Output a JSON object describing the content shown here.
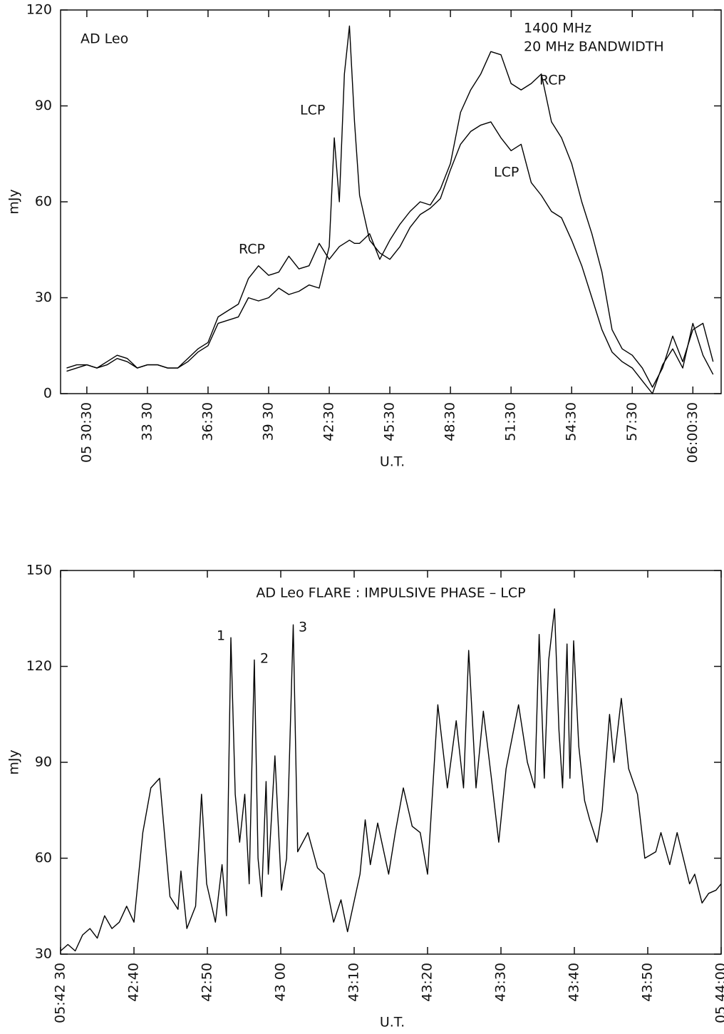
{
  "chart_data": [
    {
      "type": "line",
      "annotations": [
        "AD  Leo",
        "1400 MHz",
        "20 MHz  BANDWIDTH"
      ],
      "xlabel": "U.T.",
      "ylabel": "mJy",
      "x": [
        29.5,
        30,
        30.5,
        31,
        31.5,
        32,
        32.5,
        33,
        33.5,
        34,
        34.5,
        35,
        35.5,
        36,
        36.5,
        37,
        37.5,
        38,
        38.5,
        39,
        39.5,
        40,
        40.5,
        41,
        41.5,
        42,
        42.5,
        42.75,
        43,
        43.25,
        43.5,
        43.75,
        44,
        44.5,
        45,
        45.5,
        46,
        46.5,
        47,
        47.5,
        48,
        48.5,
        49,
        49.5,
        50,
        50.5,
        51,
        51.5,
        52,
        52.5,
        53,
        53.5,
        54,
        54.5,
        55,
        55.5,
        56,
        56.5,
        57,
        57.5,
        58,
        58.5,
        59,
        59.5,
        60,
        60.5,
        61,
        61.5
      ],
      "series": [
        {
          "name": "RCP",
          "color": "#000000",
          "values": [
            8,
            9,
            9,
            8,
            10,
            12,
            11,
            8,
            9,
            9,
            8,
            8,
            11,
            14,
            16,
            24,
            26,
            28,
            36,
            40,
            37,
            38,
            43,
            39,
            40,
            47,
            42,
            44,
            46,
            47,
            48,
            47,
            47,
            50,
            42,
            48,
            53,
            57,
            60,
            59,
            64,
            72,
            88,
            95,
            100,
            107,
            106,
            97,
            95,
            97,
            100,
            85,
            80,
            72,
            60,
            50,
            38,
            20,
            14,
            12,
            8,
            2,
            8,
            18,
            10,
            20,
            22,
            10
          ]
        },
        {
          "name": "LCP",
          "color": "#000000",
          "values": [
            7,
            8,
            9,
            8,
            9,
            11,
            10,
            8,
            9,
            9,
            8,
            8,
            10,
            13,
            15,
            22,
            23,
            24,
            30,
            29,
            30,
            33,
            31,
            32,
            34,
            33,
            46,
            80,
            60,
            100,
            115,
            85,
            62,
            48,
            44,
            42,
            46,
            52,
            56,
            58,
            61,
            70,
            78,
            82,
            84,
            85,
            80,
            76,
            78,
            66,
            62,
            57,
            55,
            48,
            40,
            30,
            20,
            13,
            10,
            8,
            4,
            0,
            9,
            14,
            8,
            22,
            12,
            6
          ]
        }
      ],
      "xlim": [
        29.2,
        61.9
      ],
      "ylim": [
        0,
        120
      ],
      "xticks": [
        {
          "value": 30.5,
          "label": "05 30:30"
        },
        {
          "value": 33.5,
          "label": "33 30"
        },
        {
          "value": 36.5,
          "label": "36:30"
        },
        {
          "value": 39.5,
          "label": "39 30"
        },
        {
          "value": 42.5,
          "label": "42:30"
        },
        {
          "value": 45.5,
          "label": "45:30"
        },
        {
          "value": 48.5,
          "label": "48:30"
        },
        {
          "value": 51.5,
          "label": "51:30"
        },
        {
          "value": 54.5,
          "label": "54:30"
        },
        {
          "value": 57.5,
          "label": "57:30"
        },
        {
          "value": 60.5,
          "label": "06:00:30"
        }
      ],
      "yticks": [
        0,
        30,
        60,
        90,
        120
      ]
    },
    {
      "type": "line",
      "title": "AD Leo FLARE : IMPULSIVE PHASE – LCP",
      "annotations": [
        "1",
        "2",
        "3"
      ],
      "xlabel": "U.T.",
      "ylabel": "mJy",
      "x": [
        30,
        31,
        32,
        33,
        34,
        35,
        36,
        37,
        38,
        39,
        40,
        41.2,
        42.3,
        43.5,
        44.9,
        46,
        46.4,
        47.2,
        48.4,
        49.2,
        49.9,
        51.1,
        52,
        52.6,
        53.2,
        53.8,
        54.4,
        55.1,
        55.7,
        56.4,
        56.9,
        57.4,
        58,
        58.3,
        59.2,
        60.1,
        60.8,
        61.7,
        62.3,
        63.7,
        65,
        65.9,
        67.2,
        68.2,
        69.1,
        70.8,
        71.5,
        72.2,
        73.2,
        74.7,
        75.6,
        76.7,
        77.9,
        79,
        80,
        81.4,
        82.7,
        83.9,
        84.9,
        85.6,
        86.6,
        87.6,
        88.7,
        89.7,
        90.7,
        92.4,
        93.6,
        94.6,
        95.2,
        95.9,
        96.5,
        97.3,
        97.9,
        98.4,
        99,
        99.4,
        99.9,
        100.6,
        101.4,
        102.1,
        103.1,
        103.8,
        104.8,
        105.4,
        106.4,
        107.4,
        108.6,
        109.6,
        111.1,
        111.8,
        113,
        114,
        115.7,
        116.4,
        117.4,
        118.3,
        119.3,
        120
      ],
      "values": [
        31,
        33,
        31,
        36,
        38,
        35,
        42,
        38,
        40,
        45,
        40,
        68,
        82,
        85,
        48,
        44,
        56,
        38,
        45,
        80,
        52,
        40,
        58,
        42,
        129,
        80,
        65,
        80,
        52,
        122,
        60,
        48,
        84,
        55,
        92,
        50,
        60,
        133,
        62,
        68,
        57,
        55,
        40,
        47,
        37,
        55,
        72,
        58,
        71,
        55,
        68,
        82,
        70,
        68,
        55,
        108,
        82,
        103,
        82,
        125,
        82,
        106,
        85,
        65,
        88,
        108,
        90,
        82,
        130,
        85,
        122,
        138,
        100,
        82,
        127,
        85,
        128,
        95,
        78,
        72,
        65,
        75,
        105,
        90,
        110,
        88,
        80,
        60,
        62,
        68,
        58,
        68,
        52,
        55,
        46,
        49,
        50,
        52
      ],
      "xlim": [
        30,
        120
      ],
      "ylim": [
        30,
        150
      ],
      "xticks": [
        {
          "value": 30,
          "label": "05:42 30"
        },
        {
          "value": 40,
          "label": "42:40"
        },
        {
          "value": 50,
          "label": "42:50"
        },
        {
          "value": 60,
          "label": "43 00"
        },
        {
          "value": 70,
          "label": "43:10"
        },
        {
          "value": 80,
          "label": "43:20"
        },
        {
          "value": 90,
          "label": "43:30"
        },
        {
          "value": 100,
          "label": "43:40"
        },
        {
          "value": 110,
          "label": "43:50"
        },
        {
          "value": 120,
          "label": "05 44:00"
        }
      ],
      "yticks": [
        30,
        60,
        90,
        120,
        150
      ]
    }
  ]
}
